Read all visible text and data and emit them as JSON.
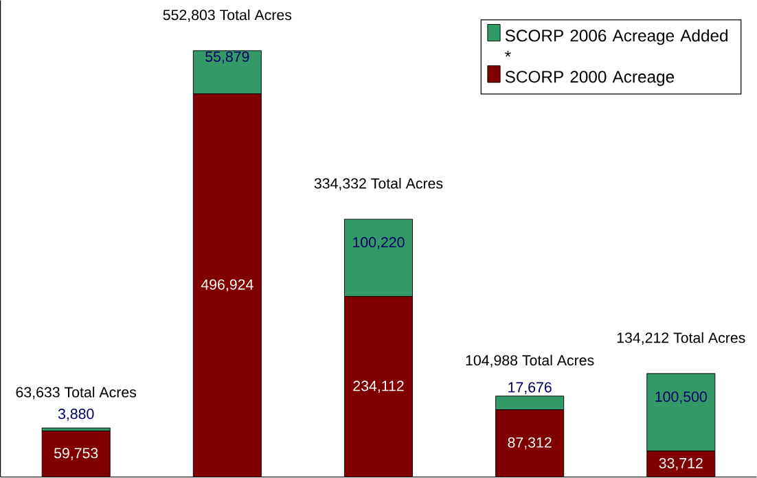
{
  "chart_data": {
    "type": "bar",
    "stacked": true,
    "legend": "top right",
    "categories": [
      null,
      null,
      null,
      null,
      null
    ],
    "ylim": [
      0,
      618000
    ],
    "series": [
      {
        "name": "SCORP 2000 Acreage",
        "color": "#800000",
        "values": [
          59753,
          496924,
          234112,
          87312,
          33712
        ],
        "value_labels": [
          "59,753",
          "496,924",
          "234,112",
          "87,312",
          "33,712"
        ]
      },
      {
        "name": "SCORP 2006 Acreage Added *",
        "color": "#339966",
        "values": [
          3880,
          55879,
          100220,
          17676,
          100500
        ],
        "value_labels": [
          "3,880",
          "55,879",
          "100,220",
          "17,676",
          "100,500"
        ]
      }
    ],
    "totals": [
      "63,633 Total Acres",
      "552,803 Total Acres",
      "334,332 Total Acres",
      "104,988 Total Acres",
      "134,212 Total Acres"
    ]
  }
}
